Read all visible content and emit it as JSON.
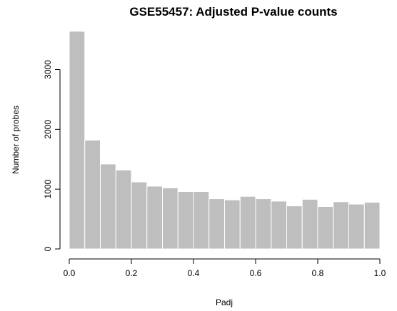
{
  "chart_data": {
    "type": "bar",
    "title": "GSE55457: Adjusted P-value counts",
    "xlabel": "Padj",
    "ylabel": "Number of probes",
    "xlim": [
      0,
      1
    ],
    "ylim": [
      0,
      3650
    ],
    "x_ticks": [
      "0.0",
      "0.2",
      "0.4",
      "0.6",
      "0.8",
      "1.0"
    ],
    "y_ticks": [
      "0",
      "1000",
      "2000",
      "3000"
    ],
    "bin_edges": [
      0,
      0.05,
      0.1,
      0.15,
      0.2,
      0.25,
      0.3,
      0.35,
      0.4,
      0.45,
      0.5,
      0.55,
      0.6,
      0.65,
      0.7,
      0.75,
      0.8,
      0.85,
      0.9,
      0.95,
      1.0
    ],
    "values": [
      3640,
      1820,
      1420,
      1320,
      1120,
      1050,
      1020,
      960,
      960,
      840,
      820,
      880,
      840,
      800,
      720,
      830,
      710,
      790,
      750,
      780
    ],
    "bar_color": "#bebebe",
    "grid": false,
    "legend": "none"
  }
}
